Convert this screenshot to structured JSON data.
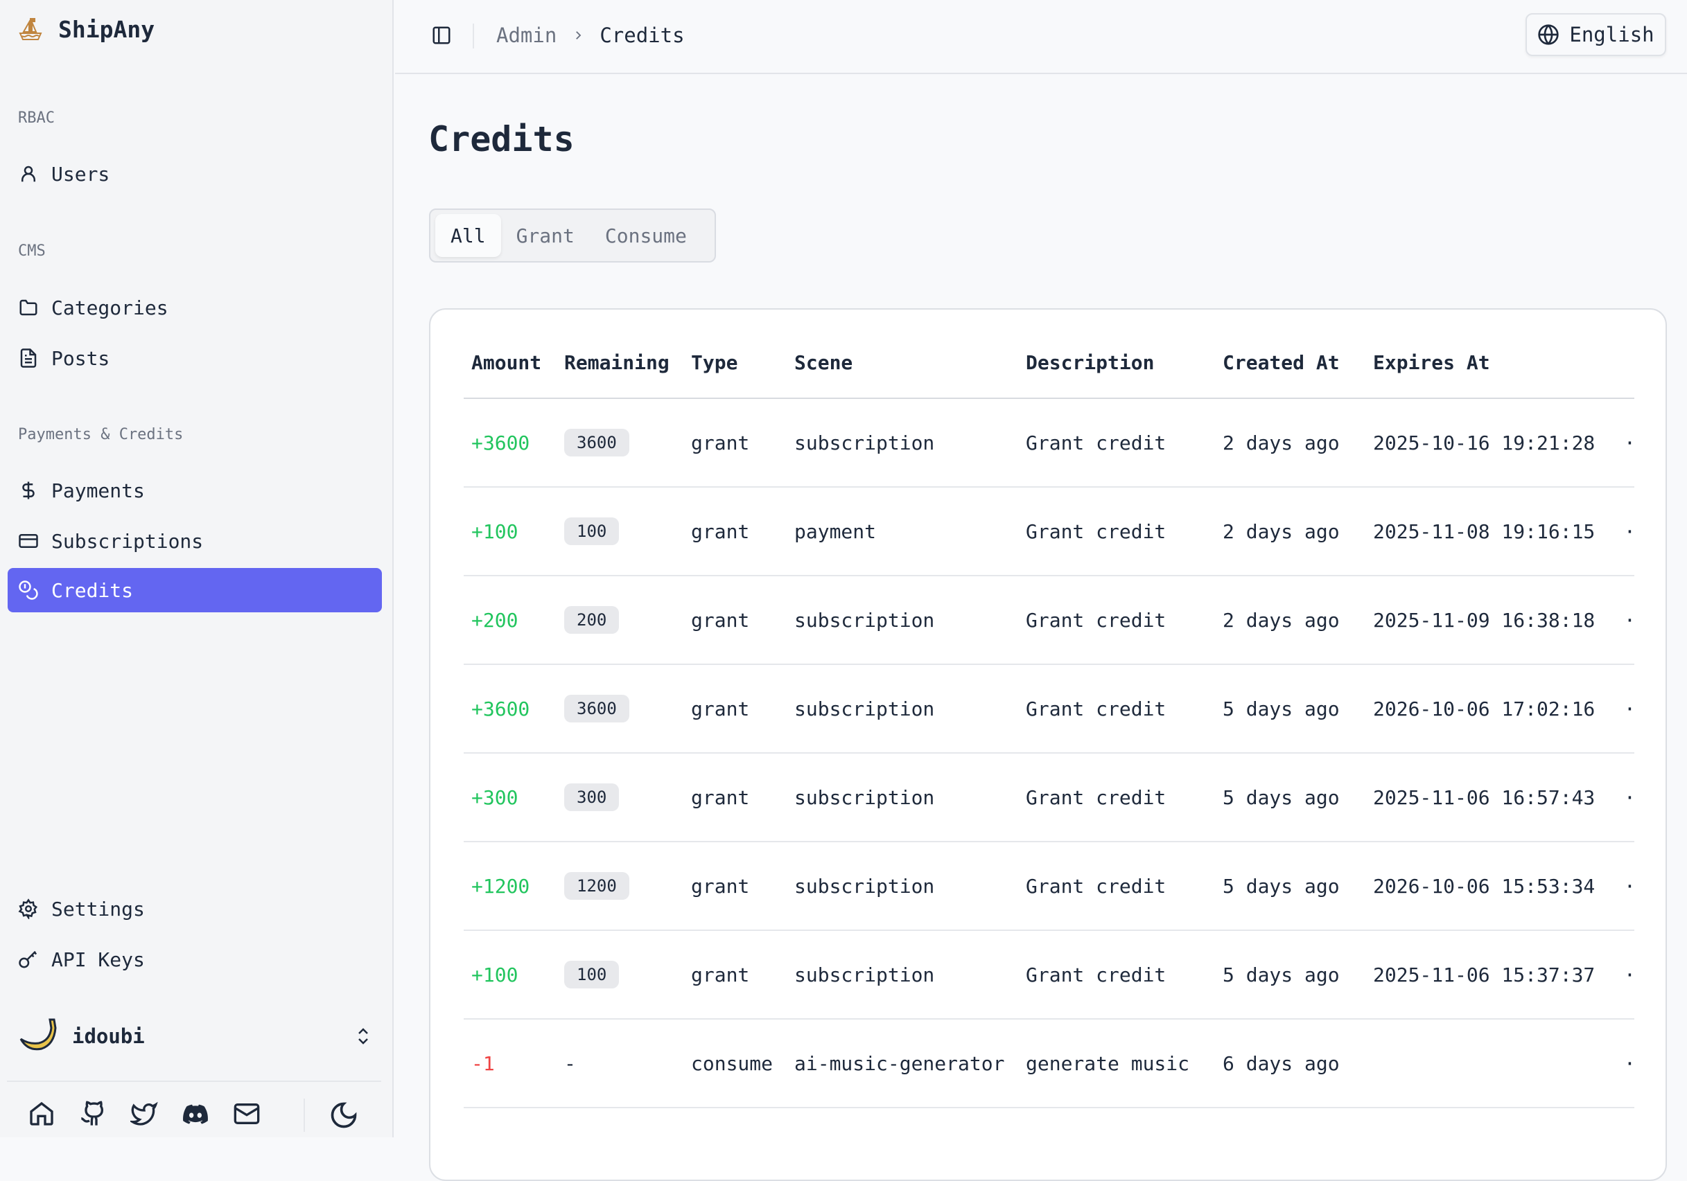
{
  "app": {
    "name": "ShipAny"
  },
  "sidebar": {
    "groups": [
      {
        "label": "RBAC",
        "items": [
          {
            "label": "Users",
            "icon": "user-icon"
          }
        ]
      },
      {
        "label": "CMS",
        "items": [
          {
            "label": "Categories",
            "icon": "folder-icon"
          },
          {
            "label": "Posts",
            "icon": "file-text-icon"
          }
        ]
      },
      {
        "label": "Payments & Credits",
        "items": [
          {
            "label": "Payments",
            "icon": "dollar-icon"
          },
          {
            "label": "Subscriptions",
            "icon": "credit-card-icon"
          },
          {
            "label": "Credits",
            "icon": "coins-icon",
            "active": true
          }
        ]
      }
    ],
    "bottom": [
      {
        "label": "Settings",
        "icon": "gear-icon"
      },
      {
        "label": "API Keys",
        "icon": "key-icon"
      }
    ],
    "user": {
      "name": "idoubi"
    },
    "accent": "#6366f1"
  },
  "header": {
    "breadcrumb": [
      "Admin",
      "Credits"
    ],
    "language": "English"
  },
  "main": {
    "title": "Credits",
    "tabs": [
      "All",
      "Grant",
      "Consume"
    ],
    "active_tab": "All",
    "table": {
      "columns": [
        "Amount",
        "Remaining",
        "Type",
        "Scene",
        "Description",
        "Created At",
        "Expires At"
      ],
      "rows": [
        {
          "amount": "+3600",
          "remaining": "3600",
          "type": "grant",
          "scene": "subscription",
          "description": "Grant credit",
          "created": "2 days ago",
          "expires": "2025-10-16 19:21:28"
        },
        {
          "amount": "+100",
          "remaining": "100",
          "type": "grant",
          "scene": "payment",
          "description": "Grant credit",
          "created": "2 days ago",
          "expires": "2025-11-08 19:16:15"
        },
        {
          "amount": "+200",
          "remaining": "200",
          "type": "grant",
          "scene": "subscription",
          "description": "Grant credit",
          "created": "2 days ago",
          "expires": "2025-11-09 16:38:18"
        },
        {
          "amount": "+3600",
          "remaining": "3600",
          "type": "grant",
          "scene": "subscription",
          "description": "Grant credit",
          "created": "5 days ago",
          "expires": "2026-10-06 17:02:16"
        },
        {
          "amount": "+300",
          "remaining": "300",
          "type": "grant",
          "scene": "subscription",
          "description": "Grant credit",
          "created": "5 days ago",
          "expires": "2025-11-06 16:57:43"
        },
        {
          "amount": "+1200",
          "remaining": "1200",
          "type": "grant",
          "scene": "subscription",
          "description": "Grant credit",
          "created": "5 days ago",
          "expires": "2026-10-06 15:53:34"
        },
        {
          "amount": "+100",
          "remaining": "100",
          "type": "grant",
          "scene": "subscription",
          "description": "Grant credit",
          "created": "5 days ago",
          "expires": "2025-11-06 15:37:37"
        },
        {
          "amount": "-1",
          "remaining": "-",
          "type": "consume",
          "scene": "ai-music-generator",
          "description": "generate music",
          "created": "6 days ago",
          "expires": ""
        }
      ]
    },
    "colors": {
      "positive": "#22c55e",
      "negative": "#ef4444"
    }
  }
}
